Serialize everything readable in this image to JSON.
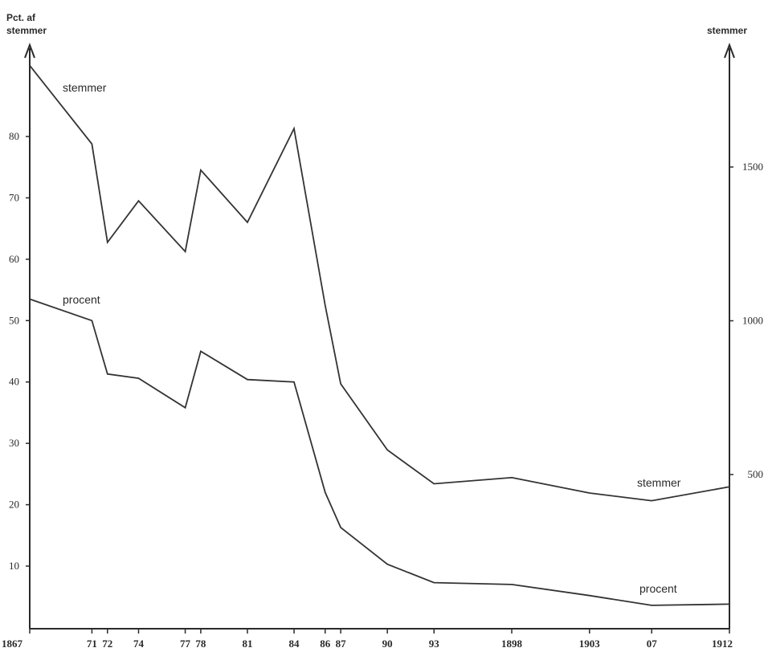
{
  "chart_data": {
    "type": "line",
    "left_axis_title_line1": "Pct. af",
    "left_axis_title_line2": "stemmer",
    "right_axis_title": "stemmer",
    "x_tick_labels": [
      "1867",
      "71",
      "72",
      "74",
      "77",
      "78",
      "81",
      "84",
      "86",
      "87",
      "90",
      "93",
      "1898",
      "1903",
      "07",
      "1912"
    ],
    "x": [
      1867,
      1871,
      1872,
      1874,
      1877,
      1878,
      1881,
      1884,
      1886,
      1887,
      1890,
      1893,
      1898,
      1903,
      1907,
      1912
    ],
    "left_axis": {
      "ylim": [
        0,
        92
      ],
      "ticks": [
        10,
        20,
        30,
        40,
        50,
        60,
        70,
        80
      ]
    },
    "right_axis": {
      "ylim": [
        0,
        1880
      ],
      "ticks": [
        500,
        1000,
        1500
      ]
    },
    "series": [
      {
        "name": "stemmer",
        "axis": "right",
        "values": [
          1830,
          1575,
          1255,
          1390,
          1225,
          1490,
          1320,
          1625,
          1050,
          795,
          580,
          470,
          490,
          440,
          415,
          460
        ]
      },
      {
        "name": "procent",
        "axis": "left",
        "values": [
          53.5,
          50,
          41.3,
          40.6,
          35.8,
          45,
          40.4,
          40,
          22,
          16.3,
          10.3,
          7.3,
          7,
          5.2,
          3.6,
          3.8
        ]
      }
    ],
    "series_labels": [
      {
        "text": "stemmer",
        "series": "stemmer",
        "placement": "upper-left"
      },
      {
        "text": "procent",
        "series": "procent",
        "placement": "upper-left"
      },
      {
        "text": "stemmer",
        "series": "stemmer",
        "placement": "lower-right"
      },
      {
        "text": "procent",
        "series": "procent",
        "placement": "lower-right"
      }
    ],
    "grid": false
  }
}
